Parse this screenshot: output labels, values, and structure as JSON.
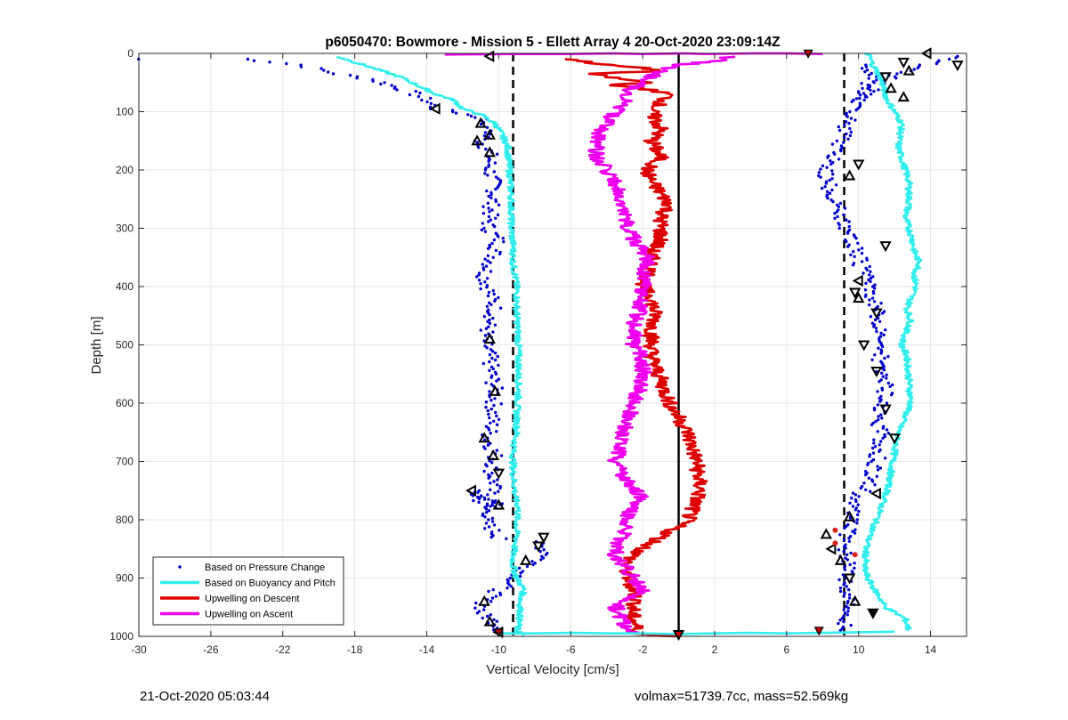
{
  "chart_data": {
    "type": "scatter",
    "title": "p6050470: Bowmore - Mission 5 - Ellett Array 4 20-Oct-2020 23:09:14Z",
    "xlabel": "Vertical Velocity [cm/s]",
    "ylabel": "Depth [m]",
    "xlim": [
      -30,
      16
    ],
    "ylim": [
      0,
      1000
    ],
    "y_reversed": true,
    "xticks": [
      -30,
      -26,
      -22,
      -18,
      -14,
      -10,
      -6,
      -2,
      2,
      6,
      10,
      14
    ],
    "yticks": [
      0,
      100,
      200,
      300,
      400,
      500,
      600,
      700,
      800,
      900,
      1000
    ],
    "grid": true,
    "legend_placement": "bottom-left",
    "legend": [
      {
        "label": "Based on Pressure Change",
        "color": "#0000cc",
        "style": "dot"
      },
      {
        "label": "Based on Buoyancy and Pitch",
        "color": "#33eeee",
        "style": "line"
      },
      {
        "label": "Upwelling on Descent",
        "color": "#dd0000",
        "style": "line"
      },
      {
        "label": "Upwelling on Ascent",
        "color": "#ee00ee",
        "style": "line"
      }
    ],
    "series": [
      {
        "name": "Based on Pressure Change",
        "color": "#0000cc",
        "segments": [
          {
            "x": [
              -30,
              -24,
              -21,
              -19,
              -17,
              -16,
              -15,
              -14,
              -13.5,
              -12.5,
              -11,
              -10.3,
              -11,
              -10.5,
              -10.5,
              -10.2,
              -10.4,
              -10.6,
              -10,
              -10.3,
              -10.8,
              -10.5,
              -10.2,
              -10.5,
              -10.8,
              -10.5,
              -10.4,
              -10.2,
              -10.3,
              -10.4,
              -10.6,
              -10.2,
              -10.4,
              -10.2,
              -10.6,
              -10.3,
              -10,
              -11.5,
              -10.5,
              -10.8,
              -10,
              -7.8,
              -7.2,
              -8.4,
              -9,
              -10,
              -10.8,
              -11,
              -10,
              -9.8
            ],
            "y": [
              10,
              10,
              20,
              35,
              45,
              55,
              65,
              80,
              95,
              100,
              110,
              130,
              150,
              170,
              200,
              230,
              260,
              300,
              320,
              350,
              380,
              410,
              440,
              460,
              490,
              520,
              550,
              580,
              610,
              640,
              660,
              690,
              720,
              740,
              760,
              770,
              780,
              750,
              790,
              800,
              830,
              840,
              860,
              880,
              900,
              920,
              940,
              960,
              980,
              995
            ]
          },
          {
            "x": [
              9,
              9.3,
              9.6,
              9.4,
              9.2,
              9.3,
              9.6,
              9.4,
              9.2,
              9.4,
              9.6,
              9.8,
              10,
              10.5,
              10.8,
              11,
              11.1,
              11.3,
              11.2,
              11,
              11.3,
              11.5,
              11.4,
              11.1,
              11.2,
              11.5,
              11.4,
              11.1,
              11,
              10.8,
              10.6,
              10.4,
              10.1,
              9.9,
              9.6,
              9.3,
              9.1,
              8.8,
              8.5,
              8.3,
              8.1,
              8.4,
              8.7,
              9,
              9.4,
              9.7,
              10,
              10.4,
              10.7,
              10.4
            ],
            "y": [
              990,
              975,
              960,
              940,
              920,
              900,
              880,
              860,
              840,
              820,
              800,
              780,
              760,
              740,
              720,
              700,
              680,
              660,
              640,
              620,
              600,
              580,
              560,
              540,
              520,
              500,
              480,
              460,
              440,
              420,
              400,
              380,
              360,
              340,
              320,
              300,
              280,
              260,
              240,
              220,
              210,
              190,
              170,
              150,
              120,
              100,
              80,
              60,
              40,
              20
            ]
          },
          {
            "x": [
              9.8,
              10.3,
              10.8,
              11.3,
              11.8,
              12.3,
              12.8,
              13.3,
              13.8,
              14.4,
              15,
              15.5
            ],
            "y": [
              80,
              70,
              60,
              50,
              40,
              35,
              30,
              25,
              20,
              15,
              10,
              5
            ]
          }
        ]
      },
      {
        "name": "Based on Buoyancy and Pitch",
        "color": "#33eeee",
        "segments": [
          {
            "x": [
              -19,
              -17,
              -15.5,
              -14.5,
              -13.5,
              -12.5,
              -12,
              -11,
              -10.2,
              -9.8,
              -9.5,
              -9.4,
              -9.3,
              -9.3,
              -9.2,
              -9.2,
              -9,
              -9,
              -8.9,
              -8.9,
              -8.9,
              -9,
              -9,
              -9.2,
              -9.2,
              -9.1,
              -9.1,
              -8.9,
              -9,
              -9,
              -9.2,
              -9.2,
              -9,
              -8.6,
              -8.8,
              -8.8,
              -8.9,
              -9,
              -8.9,
              -8.7,
              -8.8,
              -8.7
            ],
            "y": [
              5,
              25,
              40,
              55,
              70,
              80,
              95,
              105,
              120,
              140,
              160,
              200,
              250,
              300,
              330,
              360,
              400,
              450,
              500,
              550,
              580,
              620,
              650,
              680,
              720,
              750,
              760,
              780,
              800,
              830,
              860,
              880,
              900,
              920,
              940,
              960,
              980,
              990,
              992,
              994,
              996,
              998
            ]
          },
          {
            "x": [
              10.5,
              10.8,
              11.2,
              11.4,
              11.6,
              11.8,
              12,
              12.2,
              12.4,
              12.3,
              12.2,
              12.4,
              12.6,
              12.8,
              12.8,
              12.8,
              12.6,
              12.8,
              13,
              13.1,
              13.4,
              13.1,
              13.2,
              12.9,
              12.7,
              12.9,
              12.6,
              12.4,
              12.7,
              12.8,
              12.9,
              12.2,
              11.9,
              11.6,
              11,
              10.6,
              10.4,
              10.4,
              10.3,
              10.5,
              11.5,
              12.6,
              12.8
            ],
            "y": [
              0,
              20,
              40,
              60,
              80,
              90,
              100,
              110,
              120,
              140,
              160,
              180,
              200,
              220,
              240,
              260,
              280,
              300,
              320,
              340,
              360,
              380,
              400,
              420,
              440,
              460,
              480,
              500,
              520,
              560,
              600,
              650,
              700,
              750,
              800,
              830,
              850,
              870,
              880,
              900,
              950,
              970,
              990
            ]
          }
        ]
      },
      {
        "name": "Upwelling on Descent",
        "color": "#dd0000",
        "segments": [
          {
            "x": [
              -6,
              -4,
              -2,
              -1,
              -5,
              -3,
              -1.5,
              -4,
              -2,
              -0.5,
              -1.5,
              -1,
              -1.5,
              -1,
              -1.8,
              -1.5,
              -1,
              -0.5,
              -1,
              -1,
              -1,
              -1.5,
              -1.5,
              -1.7,
              -2,
              -1.5,
              -1.3,
              -1.5,
              -1.5,
              -1,
              -0.5,
              0.5,
              1,
              1.2,
              0.5,
              -1,
              -2.5,
              -3,
              -2.8,
              -2.5,
              -2.4,
              -2.6,
              -2.4,
              -2.3,
              -2.6,
              -1.5,
              0
            ],
            "y": [
              10,
              20,
              25,
              30,
              35,
              45,
              50,
              55,
              60,
              70,
              100,
              130,
              150,
              180,
              200,
              220,
              240,
              260,
              280,
              300,
              320,
              340,
              360,
              380,
              400,
              420,
              450,
              480,
              520,
              560,
              600,
              650,
              700,
              750,
              800,
              830,
              860,
              880,
              900,
              920,
              940,
              960,
              980,
              990,
              995,
              998,
              1000
            ]
          }
        ]
      },
      {
        "name": "Upwelling on Ascent",
        "color": "#ee00ee",
        "segments": [
          {
            "x": [
              -2.5,
              -3,
              -3.5,
              -2,
              -2.5,
              -3,
              -3.5,
              -3.5,
              -3,
              -3,
              -2.5,
              -2,
              -3,
              -3.5,
              -3.2,
              -3,
              -2.5,
              -2,
              -2,
              -2.5,
              -2.5,
              -2.2,
              -2,
              -2,
              -1.7,
              -2.5,
              -3,
              -3.2,
              -3.5,
              -4,
              -4.5,
              -4.6,
              -4.5,
              -4,
              -3.5,
              -3,
              -2.6,
              -2,
              -1.5,
              -1,
              0,
              1.5,
              2.5,
              3
            ],
            "y": [
              995,
              980,
              950,
              920,
              900,
              880,
              860,
              840,
              820,
              800,
              780,
              760,
              730,
              700,
              670,
              640,
              600,
              560,
              520,
              500,
              470,
              440,
              410,
              380,
              350,
              320,
              280,
              250,
              220,
              200,
              180,
              160,
              140,
              120,
              100,
              80,
              60,
              50,
              40,
              30,
              20,
              15,
              10,
              5
            ]
          },
          {
            "x": [
              -13,
              -9,
              -6,
              -4,
              -2,
              0,
              2,
              4,
              6,
              8
            ],
            "y": [
              2,
              1,
              1,
              0,
              1,
              0,
              1,
              0,
              0,
              1
            ]
          }
        ]
      },
      {
        "name": "Ascent/descent horizontal line",
        "color": "#33eeee",
        "segments": [
          {
            "x": [
              -10,
              -8,
              -6,
              -4,
              -2,
              0,
              2,
              4,
              6,
              8,
              10,
              12
            ],
            "y": [
              995,
              995,
              994,
              995,
              995,
              996,
              995,
              994,
              995,
              994,
              993,
              992
            ]
          }
        ]
      }
    ],
    "reference_lines": [
      {
        "x": -9.2,
        "style": "dashed",
        "color": "#000000"
      },
      {
        "x": 9.2,
        "style": "dashed",
        "color": "#000000"
      },
      {
        "x": 0,
        "style": "solid",
        "color": "#000000"
      }
    ],
    "markers": [
      {
        "x": -10.5,
        "y": 5,
        "shape": "triangle-left"
      },
      {
        "x": 13.8,
        "y": 0,
        "shape": "triangle-left"
      },
      {
        "x": 12.5,
        "y": 15,
        "shape": "triangle-down"
      },
      {
        "x": 15.5,
        "y": 20,
        "shape": "triangle-down"
      },
      {
        "x": 11.5,
        "y": 40,
        "shape": "triangle-down"
      },
      {
        "x": 12.8,
        "y": 30,
        "shape": "triangle-up"
      },
      {
        "x": 11.8,
        "y": 60,
        "shape": "triangle-up"
      },
      {
        "x": 12.5,
        "y": 75,
        "shape": "triangle-up"
      },
      {
        "x": -13.5,
        "y": 95,
        "shape": "triangle-left"
      },
      {
        "x": -11,
        "y": 120,
        "shape": "triangle-up"
      },
      {
        "x": -10.5,
        "y": 140,
        "shape": "triangle-up"
      },
      {
        "x": -11.2,
        "y": 150,
        "shape": "triangle-up"
      },
      {
        "x": -10.5,
        "y": 170,
        "shape": "triangle-up"
      },
      {
        "x": 10,
        "y": 190,
        "shape": "triangle-down"
      },
      {
        "x": 9.5,
        "y": 210,
        "shape": "triangle-up"
      },
      {
        "x": 11.5,
        "y": 330,
        "shape": "triangle-down"
      },
      {
        "x": 10,
        "y": 390,
        "shape": "triangle-left"
      },
      {
        "x": 9.8,
        "y": 410,
        "shape": "triangle-down"
      },
      {
        "x": 10,
        "y": 420,
        "shape": "triangle-up"
      },
      {
        "x": 11,
        "y": 445,
        "shape": "triangle-down"
      },
      {
        "x": -10.5,
        "y": 490,
        "shape": "triangle-up"
      },
      {
        "x": 10.3,
        "y": 500,
        "shape": "triangle-down"
      },
      {
        "x": 11,
        "y": 545,
        "shape": "triangle-down"
      },
      {
        "x": -10.2,
        "y": 580,
        "shape": "triangle-up"
      },
      {
        "x": 11.5,
        "y": 610,
        "shape": "triangle-down"
      },
      {
        "x": -10.8,
        "y": 660,
        "shape": "triangle-up"
      },
      {
        "x": 12,
        "y": 660,
        "shape": "triangle-down"
      },
      {
        "x": -10.3,
        "y": 690,
        "shape": "triangle-up"
      },
      {
        "x": -10,
        "y": 720,
        "shape": "triangle-down"
      },
      {
        "x": -11.5,
        "y": 750,
        "shape": "triangle-left"
      },
      {
        "x": 11,
        "y": 755,
        "shape": "triangle-left"
      },
      {
        "x": -10,
        "y": 775,
        "shape": "triangle-up"
      },
      {
        "x": 9.5,
        "y": 795,
        "shape": "triangle-up"
      },
      {
        "x": 8.2,
        "y": 825,
        "shape": "triangle-up"
      },
      {
        "x": -7.5,
        "y": 830,
        "shape": "triangle-down"
      },
      {
        "x": -7.8,
        "y": 845,
        "shape": "triangle-down"
      },
      {
        "x": 8.5,
        "y": 850,
        "shape": "triangle-left"
      },
      {
        "x": -8.5,
        "y": 870,
        "shape": "triangle-up"
      },
      {
        "x": 9,
        "y": 870,
        "shape": "triangle-up"
      },
      {
        "x": 9.5,
        "y": 900,
        "shape": "triangle-down"
      },
      {
        "x": -10.8,
        "y": 940,
        "shape": "triangle-up"
      },
      {
        "x": 9.8,
        "y": 940,
        "shape": "triangle-up"
      },
      {
        "x": 10.8,
        "y": 960,
        "shape": "triangle-down-filled"
      },
      {
        "x": -10.5,
        "y": 975,
        "shape": "triangle-up"
      },
      {
        "x": -10,
        "y": 993,
        "shape": "triangle-left"
      },
      {
        "x": 0,
        "y": 997,
        "shape": "triangle-down"
      }
    ],
    "red_markers": [
      {
        "x": 7.2,
        "y": 0
      },
      {
        "x": 7.8,
        "y": 990
      },
      {
        "x": -10,
        "y": 993
      },
      {
        "x": 0,
        "y": 997
      }
    ],
    "red_dots": [
      {
        "x": 8.7,
        "y": 818
      },
      {
        "x": 8.7,
        "y": 840
      },
      {
        "x": 9.8,
        "y": 860
      }
    ]
  },
  "footer": {
    "timestamp": "21-Oct-2020 05:03:44",
    "info": "volmax=51739.7cc, mass=52.569kg"
  }
}
